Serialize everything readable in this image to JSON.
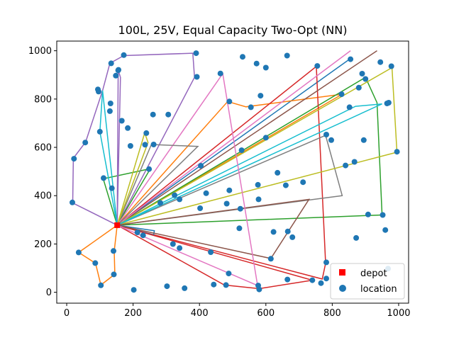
{
  "chart_data": {
    "type": "scatter",
    "title": "100L, 25V, Equal Capacity Two-Opt (NN)",
    "xlim": [
      -30,
      1030
    ],
    "ylim": [
      -45,
      1040
    ],
    "xticks": [
      0,
      200,
      400,
      600,
      800,
      1000
    ],
    "yticks": [
      0,
      200,
      400,
      600,
      800,
      1000
    ],
    "grid": false,
    "legend_position": "lower-right",
    "legend": [
      {
        "label": "depot",
        "marker": "square",
        "color": "#ff0000"
      },
      {
        "label": "location",
        "marker": "circle",
        "color": "#1f77b4"
      }
    ],
    "depot": [
      152,
      278
    ],
    "routes": [
      {
        "color": "#1f77b4",
        "path": [
          [
            852,
            965
          ]
        ]
      },
      {
        "color": "#ff7f0e",
        "path": [
          [
            485,
            790
          ],
          [
            540,
            768
          ],
          [
            830,
            820
          ]
        ]
      },
      {
        "color": "#2ca02c",
        "path": [
          [
            900,
            890
          ],
          [
            935,
            785
          ],
          [
            950,
            320
          ]
        ]
      },
      {
        "color": "#d62728",
        "path": [
          [
            752,
            935
          ],
          [
            780,
            120
          ],
          [
            770,
            55
          ]
        ]
      },
      {
        "color": "#9467bd",
        "path": [
          [
            18,
            370
          ],
          [
            20,
            555
          ],
          [
            57,
            622
          ],
          [
            108,
            835
          ],
          [
            130,
            948
          ],
          [
            172,
            980
          ],
          [
            380,
            990
          ],
          [
            385,
            890
          ]
        ]
      },
      {
        "color": "#8c564b",
        "path": [
          [
            935,
            1000
          ]
        ]
      },
      {
        "color": "#e377c2",
        "path": [
          [
            855,
            1000
          ]
        ]
      },
      {
        "color": "#7f7f7f",
        "path": [
          [
            780,
            650
          ],
          [
            830,
            400
          ]
        ]
      },
      {
        "color": "#bcbd22",
        "path": [
          [
            995,
            580
          ],
          [
            980,
            930
          ]
        ]
      },
      {
        "color": "#17becf",
        "path": [
          [
            870,
            770
          ],
          [
            950,
            780
          ]
        ]
      },
      {
        "color": "#1f77b4",
        "path": [
          [
            262,
            237
          ],
          [
            264,
            255
          ]
        ]
      },
      {
        "color": "#ff7f0e",
        "path": [
          [
            36,
            165
          ],
          [
            87,
            120
          ],
          [
            103,
            30
          ],
          [
            145,
            75
          ],
          [
            143,
            170
          ]
        ]
      },
      {
        "color": "#2ca02c",
        "path": [
          [
            110,
            470
          ],
          [
            252,
            512
          ]
        ]
      },
      {
        "color": "#d62728",
        "path": [
          [
            475,
            30
          ],
          [
            580,
            15
          ],
          [
            740,
            50
          ]
        ]
      },
      {
        "color": "#9467bd",
        "path": [
          [
            162,
            890
          ],
          [
            155,
            920
          ]
        ]
      },
      {
        "color": "#8c564b",
        "path": [
          [
            615,
            140
          ],
          [
            730,
            385
          ]
        ]
      },
      {
        "color": "#e377c2",
        "path": [
          [
            470,
            905
          ],
          [
            575,
            28
          ]
        ]
      },
      {
        "color": "#7f7f7f",
        "path": [
          [
            255,
            612
          ],
          [
            395,
            604
          ]
        ]
      },
      {
        "color": "#bcbd22",
        "path": [
          [
            245,
            620
          ],
          [
            235,
            660
          ]
        ]
      },
      {
        "color": "#17becf",
        "path": [
          [
            100,
            665
          ],
          [
            108,
            835
          ]
        ]
      }
    ],
    "locations": [
      [
        17,
        372
      ],
      [
        22,
        553
      ],
      [
        56,
        620
      ],
      [
        94,
        840
      ],
      [
        96,
        831
      ],
      [
        100,
        665
      ],
      [
        111,
        473
      ],
      [
        130,
        750
      ],
      [
        132,
        782
      ],
      [
        136,
        431
      ],
      [
        148,
        897
      ],
      [
        156,
        921
      ],
      [
        166,
        710
      ],
      [
        184,
        680
      ],
      [
        192,
        606
      ],
      [
        240,
        659
      ],
      [
        236,
        611
      ],
      [
        262,
        612
      ],
      [
        260,
        736
      ],
      [
        306,
        736
      ],
      [
        248,
        510
      ],
      [
        134,
        948
      ],
      [
        172,
        982
      ],
      [
        390,
        990
      ],
      [
        392,
        892
      ],
      [
        463,
        906
      ],
      [
        530,
        975
      ],
      [
        572,
        947
      ],
      [
        584,
        814
      ],
      [
        555,
        766
      ],
      [
        664,
        980
      ],
      [
        755,
        937
      ],
      [
        855,
        965
      ],
      [
        890,
        905
      ],
      [
        945,
        953
      ],
      [
        978,
        936
      ],
      [
        965,
        782
      ],
      [
        970,
        785
      ],
      [
        995,
        582
      ],
      [
        900,
        883
      ],
      [
        880,
        847
      ],
      [
        828,
        820
      ],
      [
        852,
        766
      ],
      [
        782,
        653
      ],
      [
        797,
        630
      ],
      [
        895,
        630
      ],
      [
        867,
        540
      ],
      [
        908,
        322
      ],
      [
        952,
        320
      ],
      [
        960,
        258
      ],
      [
        872,
        225
      ],
      [
        840,
        525
      ],
      [
        712,
        456
      ],
      [
        660,
        443
      ],
      [
        635,
        495
      ],
      [
        576,
        445
      ],
      [
        578,
        385
      ],
      [
        523,
        346
      ],
      [
        520,
        265
      ],
      [
        490,
        422
      ],
      [
        404,
        524
      ],
      [
        402,
        348
      ],
      [
        482,
        367
      ],
      [
        527,
        588
      ],
      [
        623,
        250
      ],
      [
        666,
        252
      ],
      [
        680,
        228
      ],
      [
        615,
        139
      ],
      [
        665,
        53
      ],
      [
        740,
        50
      ],
      [
        766,
        38
      ],
      [
        782,
        57
      ],
      [
        782,
        124
      ],
      [
        580,
        12
      ],
      [
        577,
        28
      ],
      [
        443,
        32
      ],
      [
        488,
        78
      ],
      [
        434,
        166
      ],
      [
        340,
        183
      ],
      [
        320,
        200
      ],
      [
        282,
        370
      ],
      [
        325,
        402
      ],
      [
        340,
        385
      ],
      [
        213,
        248
      ],
      [
        230,
        236
      ],
      [
        36,
        165
      ],
      [
        86,
        121
      ],
      [
        103,
        29
      ],
      [
        142,
        74
      ],
      [
        141,
        171
      ],
      [
        202,
        10
      ],
      [
        302,
        25
      ],
      [
        355,
        17
      ],
      [
        968,
        98
      ],
      [
        490,
        790
      ],
      [
        155,
        919
      ],
      [
        480,
        30
      ],
      [
        420,
        410
      ],
      [
        600,
        930
      ],
      [
        600,
        640
      ]
    ]
  }
}
